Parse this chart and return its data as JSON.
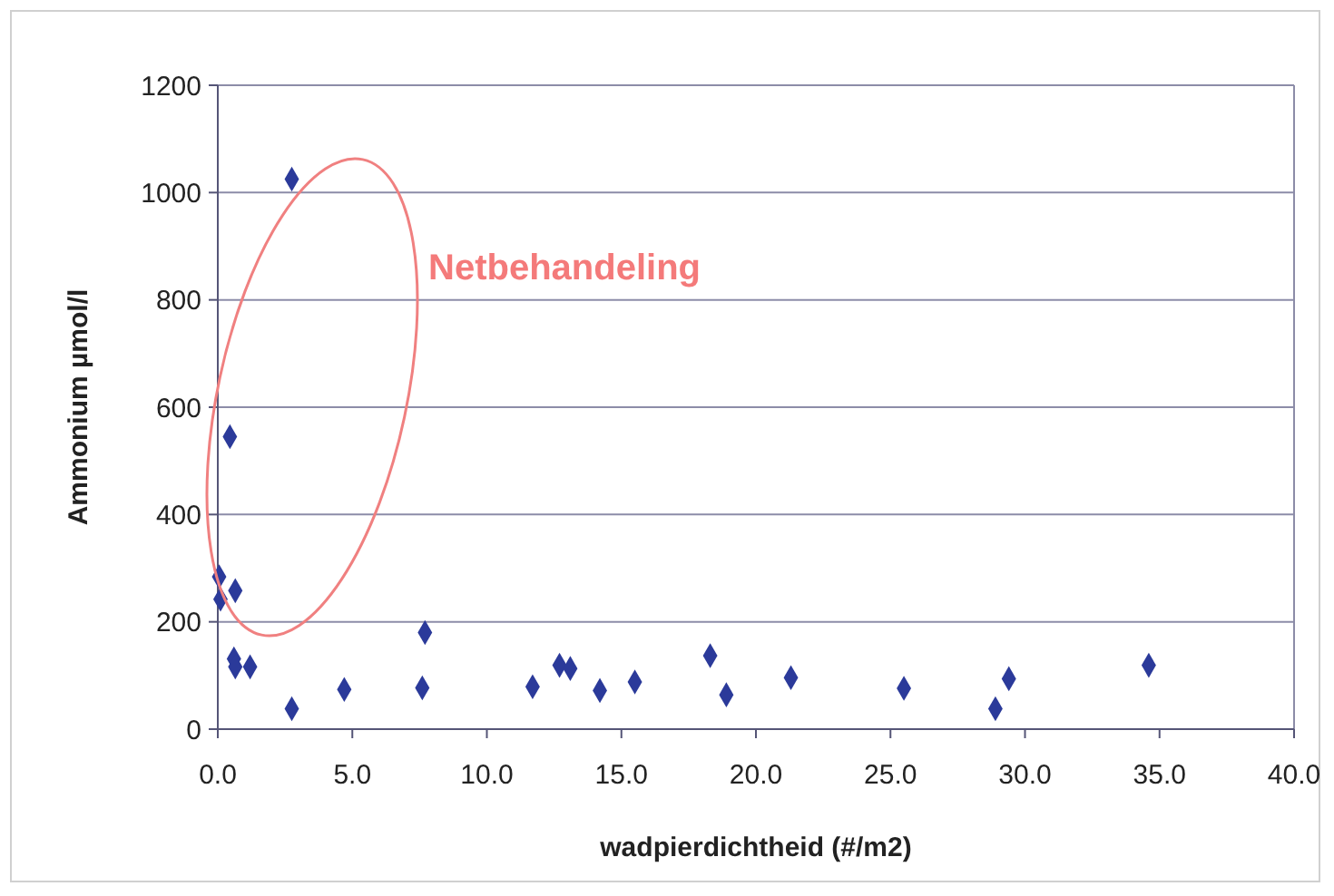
{
  "chart_data": {
    "type": "scatter",
    "xlabel": "wadpierdichtheid (#/m2)",
    "ylabel": "Ammonium µmol/l",
    "annotations": [
      "Netbehandeling"
    ],
    "x": [
      0.05,
      0.1,
      0.65,
      0.45,
      2.75,
      0.6,
      0.65,
      1.2,
      2.75,
      4.7,
      7.6,
      7.7,
      11.7,
      12.7,
      13.1,
      14.2,
      15.5,
      18.3,
      18.9,
      21.3,
      25.5,
      28.9,
      29.4,
      34.6
    ],
    "series": [
      {
        "color": "#2b3a9a",
        "values": [
          284,
          242,
          258,
          545,
          1025,
          131,
          116,
          116,
          38,
          74,
          77,
          180,
          79,
          119,
          113,
          72,
          88,
          137,
          64,
          96,
          76,
          38,
          94,
          119
        ]
      }
    ],
    "marker": "diamond",
    "grid": "y",
    "xlim": [
      0,
      40
    ],
    "xticks": [
      {
        "value": 0,
        "label": "0.0"
      },
      {
        "value": 5,
        "label": "5.0"
      },
      {
        "value": 10,
        "label": "10.0"
      },
      {
        "value": 15,
        "label": "15.0"
      },
      {
        "value": 20,
        "label": "20.0"
      },
      {
        "value": 25,
        "label": "25.0"
      },
      {
        "value": 30,
        "label": "30.0"
      },
      {
        "value": 35,
        "label": "35.0"
      },
      {
        "value": 40,
        "label": "40.0"
      }
    ],
    "ylim": [
      0,
      1200
    ],
    "yticks": [
      0,
      200,
      400,
      600,
      800,
      1000,
      1200
    ]
  }
}
